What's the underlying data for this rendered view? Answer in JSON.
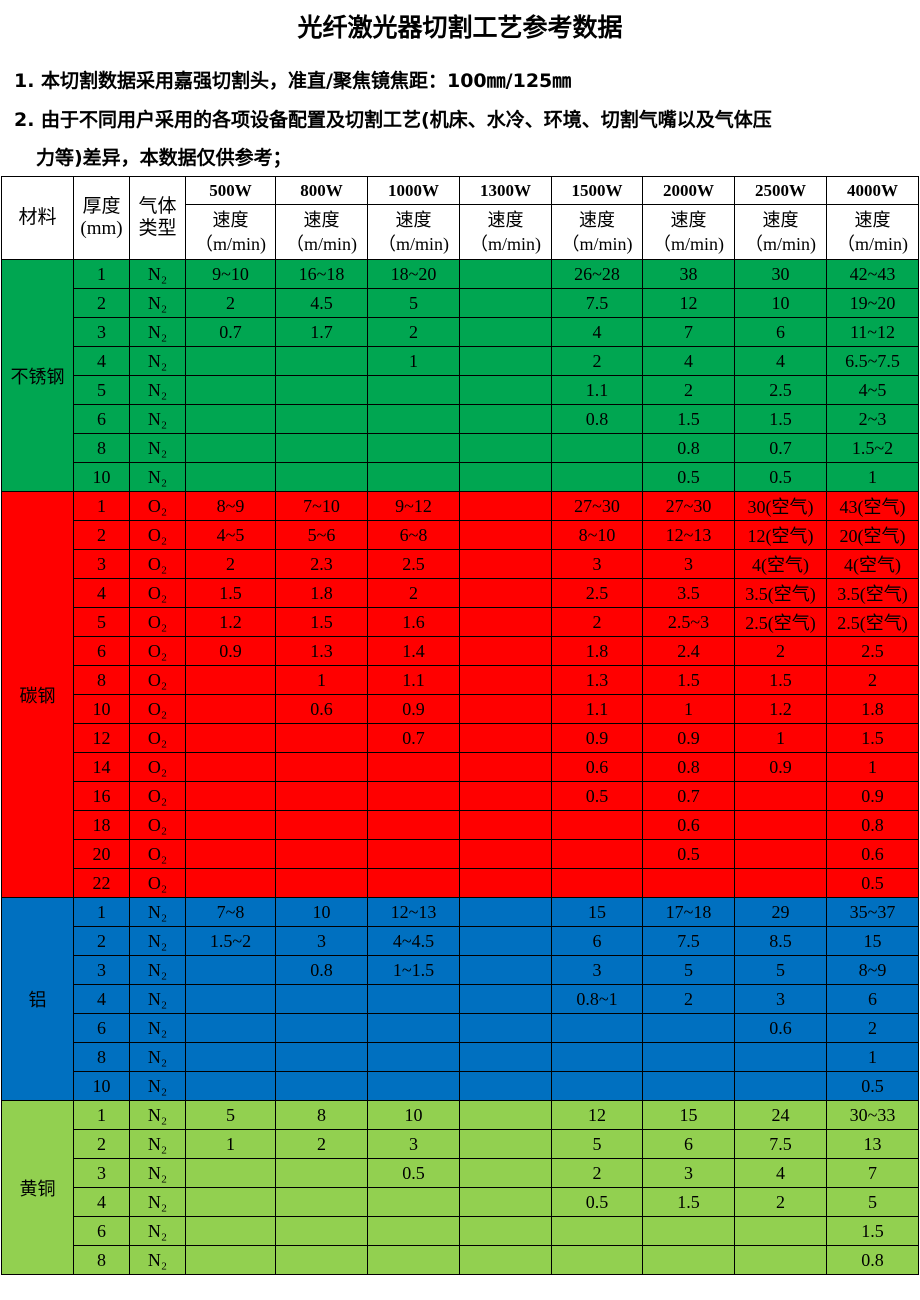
{
  "title": "光纤激光器切割工艺参考数据",
  "notes": [
    "1. 本切割数据采用嘉强切割头，准直/聚焦镜焦距：100㎜/125㎜",
    "2. 由于不同用户采用的各项设备配置及切割工艺(机床、水冷、环境、切割气嘴以及气体压",
    "力等)差异，本数据仅供参考；"
  ],
  "table": {
    "header": {
      "material": "材料",
      "thickness": "厚度(mm)",
      "gas": "气体类型",
      "powers": [
        "500W",
        "800W",
        "1000W",
        "1300W",
        "1500W",
        "2000W",
        "2500W",
        "4000W"
      ],
      "speed": "速度",
      "speed_unit": "（m/min)"
    },
    "groups": [
      {
        "material": "不锈钢",
        "color": "#00a651",
        "rows": [
          {
            "t": "1",
            "gas": "N₂",
            "v": [
              "9~10",
              "16~18",
              "18~20",
              "",
              "26~28",
              "38",
              "30",
              "42~43"
            ]
          },
          {
            "t": "2",
            "gas": "N₂",
            "v": [
              "2",
              "4.5",
              "5",
              "",
              "7.5",
              "12",
              "10",
              "19~20"
            ]
          },
          {
            "t": "3",
            "gas": "N₂",
            "v": [
              "0.7",
              "1.7",
              "2",
              "",
              "4",
              "7",
              "6",
              "11~12"
            ]
          },
          {
            "t": "4",
            "gas": "N₂",
            "v": [
              "",
              "",
              "1",
              "",
              "2",
              "4",
              "4",
              "6.5~7.5"
            ]
          },
          {
            "t": "5",
            "gas": "N₂",
            "v": [
              "",
              "",
              "",
              "",
              "1.1",
              "2",
              "2.5",
              "4~5"
            ]
          },
          {
            "t": "6",
            "gas": "N₂",
            "v": [
              "",
              "",
              "",
              "",
              "0.8",
              "1.5",
              "1.5",
              "2~3"
            ]
          },
          {
            "t": "8",
            "gas": "N₂",
            "v": [
              "",
              "",
              "",
              "",
              "",
              "0.8",
              "0.7",
              "1.5~2"
            ]
          },
          {
            "t": "10",
            "gas": "N₂",
            "v": [
              "",
              "",
              "",
              "",
              "",
              "0.5",
              "0.5",
              "1"
            ]
          }
        ]
      },
      {
        "material": "碳钢",
        "color": "#ff0000",
        "rows": [
          {
            "t": "1",
            "gas": "O₂",
            "v": [
              "8~9",
              "7~10",
              "9~12",
              "",
              "27~30",
              "27~30",
              "30(空气)",
              "43(空气)"
            ]
          },
          {
            "t": "2",
            "gas": "O₂",
            "v": [
              "4~5",
              "5~6",
              "6~8",
              "",
              "8~10",
              "12~13",
              "12(空气)",
              "20(空气)"
            ]
          },
          {
            "t": "3",
            "gas": "O₂",
            "v": [
              "2",
              "2.3",
              "2.5",
              "",
              "3",
              "3",
              "4(空气)",
              "4(空气)"
            ]
          },
          {
            "t": "4",
            "gas": "O₂",
            "v": [
              "1.5",
              "1.8",
              "2",
              "",
              "2.5",
              "3.5",
              "3.5(空气)",
              "3.5(空气)"
            ]
          },
          {
            "t": "5",
            "gas": "O₂",
            "v": [
              "1.2",
              "1.5",
              "1.6",
              "",
              "2",
              "2.5~3",
              "2.5(空气)",
              "2.5(空气)"
            ]
          },
          {
            "t": "6",
            "gas": "O₂",
            "v": [
              "0.9",
              "1.3",
              "1.4",
              "",
              "1.8",
              "2.4",
              "2",
              "2.5"
            ]
          },
          {
            "t": "8",
            "gas": "O₂",
            "v": [
              "",
              "1",
              "1.1",
              "",
              "1.3",
              "1.5",
              "1.5",
              "2"
            ]
          },
          {
            "t": "10",
            "gas": "O₂",
            "v": [
              "",
              "0.6",
              "0.9",
              "",
              "1.1",
              "1",
              "1.2",
              "1.8"
            ]
          },
          {
            "t": "12",
            "gas": "O₂",
            "v": [
              "",
              "",
              "0.7",
              "",
              "0.9",
              "0.9",
              "1",
              "1.5"
            ]
          },
          {
            "t": "14",
            "gas": "O₂",
            "v": [
              "",
              "",
              "",
              "",
              "0.6",
              "0.8",
              "0.9",
              "1"
            ]
          },
          {
            "t": "16",
            "gas": "O₂",
            "v": [
              "",
              "",
              "",
              "",
              "0.5",
              "0.7",
              "",
              "0.9"
            ]
          },
          {
            "t": "18",
            "gas": "O₂",
            "v": [
              "",
              "",
              "",
              "",
              "",
              "0.6",
              "",
              "0.8"
            ]
          },
          {
            "t": "20",
            "gas": "O₂",
            "v": [
              "",
              "",
              "",
              "",
              "",
              "0.5",
              "",
              "0.6"
            ]
          },
          {
            "t": "22",
            "gas": "O₂",
            "v": [
              "",
              "",
              "",
              "",
              "",
              "",
              "",
              "0.5"
            ]
          }
        ]
      },
      {
        "material": "铝",
        "color": "#0070c0",
        "rows": [
          {
            "t": "1",
            "gas": "N₂",
            "v": [
              "7~8",
              "10",
              "12~13",
              "",
              "15",
              "17~18",
              "29",
              "35~37"
            ]
          },
          {
            "t": "2",
            "gas": "N₂",
            "v": [
              "1.5~2",
              "3",
              "4~4.5",
              "",
              "6",
              "7.5",
              "8.5",
              "15"
            ]
          },
          {
            "t": "3",
            "gas": "N₂",
            "v": [
              "",
              "0.8",
              "1~1.5",
              "",
              "3",
              "5",
              "5",
              "8~9"
            ]
          },
          {
            "t": "4",
            "gas": "N₂",
            "v": [
              "",
              "",
              "",
              "",
              "0.8~1",
              "2",
              "3",
              "6"
            ]
          },
          {
            "t": "6",
            "gas": "N₂",
            "v": [
              "",
              "",
              "",
              "",
              "",
              "",
              "0.6",
              "2"
            ]
          },
          {
            "t": "8",
            "gas": "N₂",
            "v": [
              "",
              "",
              "",
              "",
              "",
              "",
              "",
              "1"
            ]
          },
          {
            "t": "10",
            "gas": "N₂",
            "v": [
              "",
              "",
              "",
              "",
              "",
              "",
              "",
              "0.5"
            ]
          }
        ]
      },
      {
        "material": "黄铜",
        "color": "#92d050",
        "rows": [
          {
            "t": "1",
            "gas": "N₂",
            "v": [
              "5",
              "8",
              "10",
              "",
              "12",
              "15",
              "24",
              "30~33"
            ]
          },
          {
            "t": "2",
            "gas": "N₂",
            "v": [
              "1",
              "2",
              "3",
              "",
              "5",
              "6",
              "7.5",
              "13"
            ]
          },
          {
            "t": "3",
            "gas": "N₂",
            "v": [
              "",
              "",
              "0.5",
              "",
              "2",
              "3",
              "4",
              "7"
            ]
          },
          {
            "t": "4",
            "gas": "N₂",
            "v": [
              "",
              "",
              "",
              "",
              "0.5",
              "1.5",
              "2",
              "5"
            ]
          },
          {
            "t": "6",
            "gas": "N₂",
            "v": [
              "",
              "",
              "",
              "",
              "",
              "",
              "",
              "1.5"
            ]
          },
          {
            "t": "8",
            "gas": "N₂",
            "v": [
              "",
              "",
              "",
              "",
              "",
              "",
              "",
              "0.8"
            ]
          }
        ]
      }
    ]
  }
}
